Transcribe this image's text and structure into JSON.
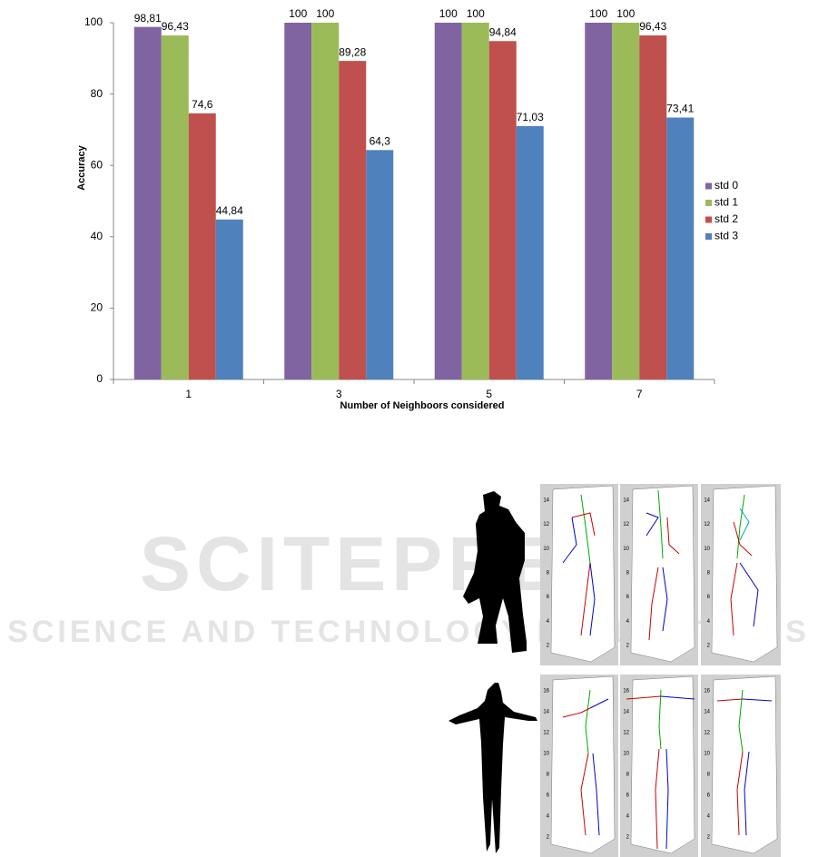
{
  "chart_data": {
    "type": "bar",
    "x_label": "Number of Neighboors considered",
    "y_label": "Accuracy",
    "categories": [
      "1",
      "3",
      "5",
      "7"
    ],
    "series": [
      {
        "name": "std 0",
        "color": "#8064a2",
        "values": [
          98.81,
          100,
          100,
          100
        ],
        "value_labels": [
          "98,81",
          "100",
          "100",
          "100"
        ]
      },
      {
        "name": "std 1",
        "color": "#9bbb59",
        "values": [
          96.43,
          100,
          100,
          100
        ],
        "value_labels": [
          "96,43",
          "100",
          "100",
          "100"
        ]
      },
      {
        "name": "std 2",
        "color": "#c0504d",
        "values": [
          74.6,
          89.28,
          94.84,
          96.43
        ],
        "value_labels": [
          "74,6",
          "89,28",
          "94,84",
          "96,43"
        ]
      },
      {
        "name": "std 3",
        "color": "#4f81bd",
        "values": [
          44.84,
          64.3,
          71.03,
          73.41
        ],
        "value_labels": [
          "44,84",
          "64,3",
          "71,03",
          "73,41"
        ]
      }
    ],
    "ylim": [
      0,
      100
    ],
    "yticks": [
      0,
      20,
      40,
      60,
      80,
      100
    ],
    "grid": false,
    "legend": "right"
  },
  "watermark": {
    "line1": "SCITEPRESS",
    "line2": "SCIENCE AND TECHNOLOGY PUBLICATIONS"
  },
  "pose_plots": [
    {
      "yticks": [
        2,
        4,
        6,
        8,
        10,
        12,
        14
      ]
    },
    {
      "yticks": [
        2,
        4,
        6,
        8,
        10,
        12,
        14
      ]
    },
    {
      "yticks": [
        2,
        4,
        6,
        8,
        10,
        12,
        14
      ]
    },
    {
      "yticks": [
        2,
        4,
        6,
        8,
        10,
        12,
        14,
        16
      ]
    },
    {
      "yticks": [
        2,
        4,
        6,
        8,
        10,
        12,
        14,
        16
      ]
    },
    {
      "yticks": [
        2,
        4,
        6,
        8,
        10,
        12,
        14,
        16
      ]
    }
  ]
}
